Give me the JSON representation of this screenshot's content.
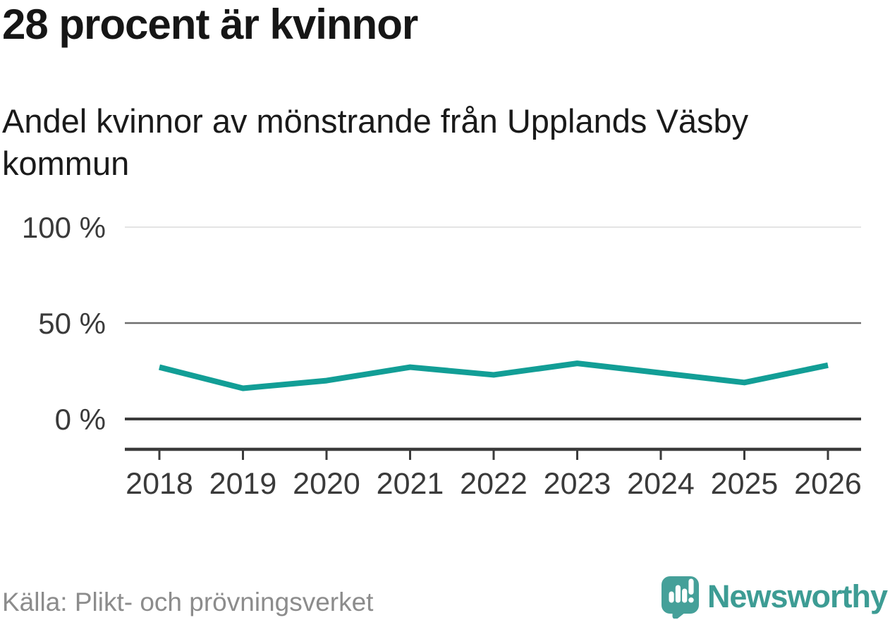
{
  "header": {
    "title": "28 procent är kvinnor",
    "subtitle": "Andel kvinnor av mönstrande från Upplands Väsby kommun"
  },
  "chart_data": {
    "type": "line",
    "title": "28 procent är kvinnor",
    "subtitle": "Andel kvinnor av mönstrande från Upplands Väsby kommun",
    "categories": [
      "2018",
      "2019",
      "2020",
      "2021",
      "2022",
      "2023",
      "2024",
      "2025",
      "2026"
    ],
    "series": [
      {
        "name": "Andel kvinnor av mönstrande",
        "values": [
          27,
          16,
          20,
          27,
          23,
          29,
          24,
          19,
          28
        ],
        "color": "#129e96"
      }
    ],
    "unit": "%",
    "ylim": [
      0,
      100
    ],
    "yticks": [
      {
        "value": 100,
        "label": "100 %",
        "color": "#dcdcdc",
        "width": 1.5
      },
      {
        "value": 50,
        "label": "50 %",
        "color": "#6e6e6e",
        "width": 2.5
      },
      {
        "value": 0,
        "label": "0 %",
        "color": "#3b3b3b",
        "width": 4
      }
    ],
    "grid": "horizontal",
    "legend": "none"
  },
  "footer": {
    "source": "Källa: Plikt- och prövningsverket",
    "brand": "Newsworthy"
  },
  "colors": {
    "axis": "#3b3b3b",
    "tick_text": "#3a3a3a",
    "line": "#129e96",
    "brand_icon": "#45a099",
    "brand_text": "#3d9c94",
    "title_text": "#161616",
    "muted_text": "#8c8c8c"
  }
}
